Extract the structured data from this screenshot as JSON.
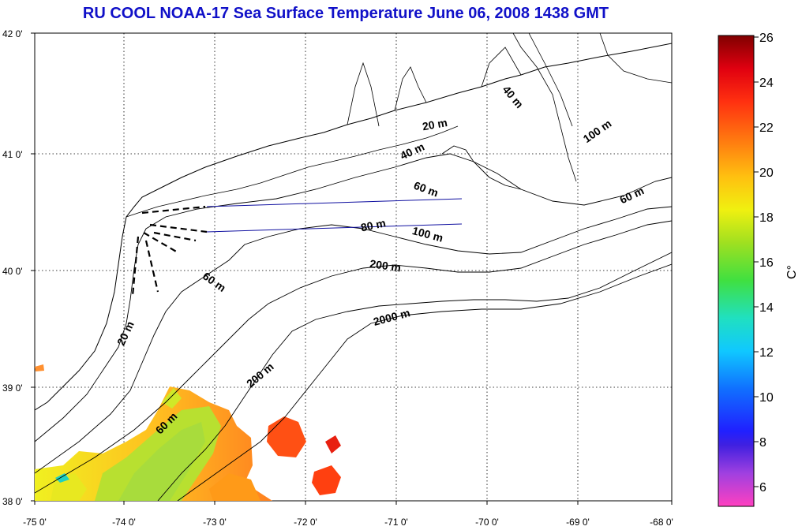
{
  "title": "RU COOL  NOAA-17 Sea Surface Temperature June 06, 2008 1438 GMT",
  "map": {
    "lon_labels": [
      "-75 0'",
      "-74 0'",
      "-73 0'",
      "-72 0'",
      "-71 0'",
      "-70 0'",
      "-69 0'",
      "-68 0'"
    ],
    "lat_labels": [
      "42 0'",
      "41 0'",
      "40 0'",
      "39 0'",
      "38 0'"
    ],
    "isobath_labels": [
      {
        "text": "40 m"
      },
      {
        "text": "100 m"
      },
      {
        "text": "20 m"
      },
      {
        "text": "40 m"
      },
      {
        "text": "60 m"
      },
      {
        "text": "60 m"
      },
      {
        "text": "80 m"
      },
      {
        "text": "100 m"
      },
      {
        "text": "200 m"
      },
      {
        "text": "60 m"
      },
      {
        "text": "2000 m"
      },
      {
        "text": "20 m"
      },
      {
        "text": "200 m"
      },
      {
        "text": "60 m"
      }
    ]
  },
  "colorbar": {
    "unit_label": "C°",
    "tick_labels": [
      "26",
      "24",
      "22",
      "20",
      "18",
      "16",
      "14",
      "12",
      "10",
      "8",
      "6"
    ],
    "range": [
      5,
      26
    ],
    "colors": [
      "#ff40c0",
      "#a040e0",
      "#2020ff",
      "#1060ff",
      "#10c0ff",
      "#20e0c0",
      "#40e040",
      "#a0e020",
      "#f0f010",
      "#ffc010",
      "#ff8010",
      "#ff3010",
      "#e00010",
      "#800000"
    ]
  }
}
